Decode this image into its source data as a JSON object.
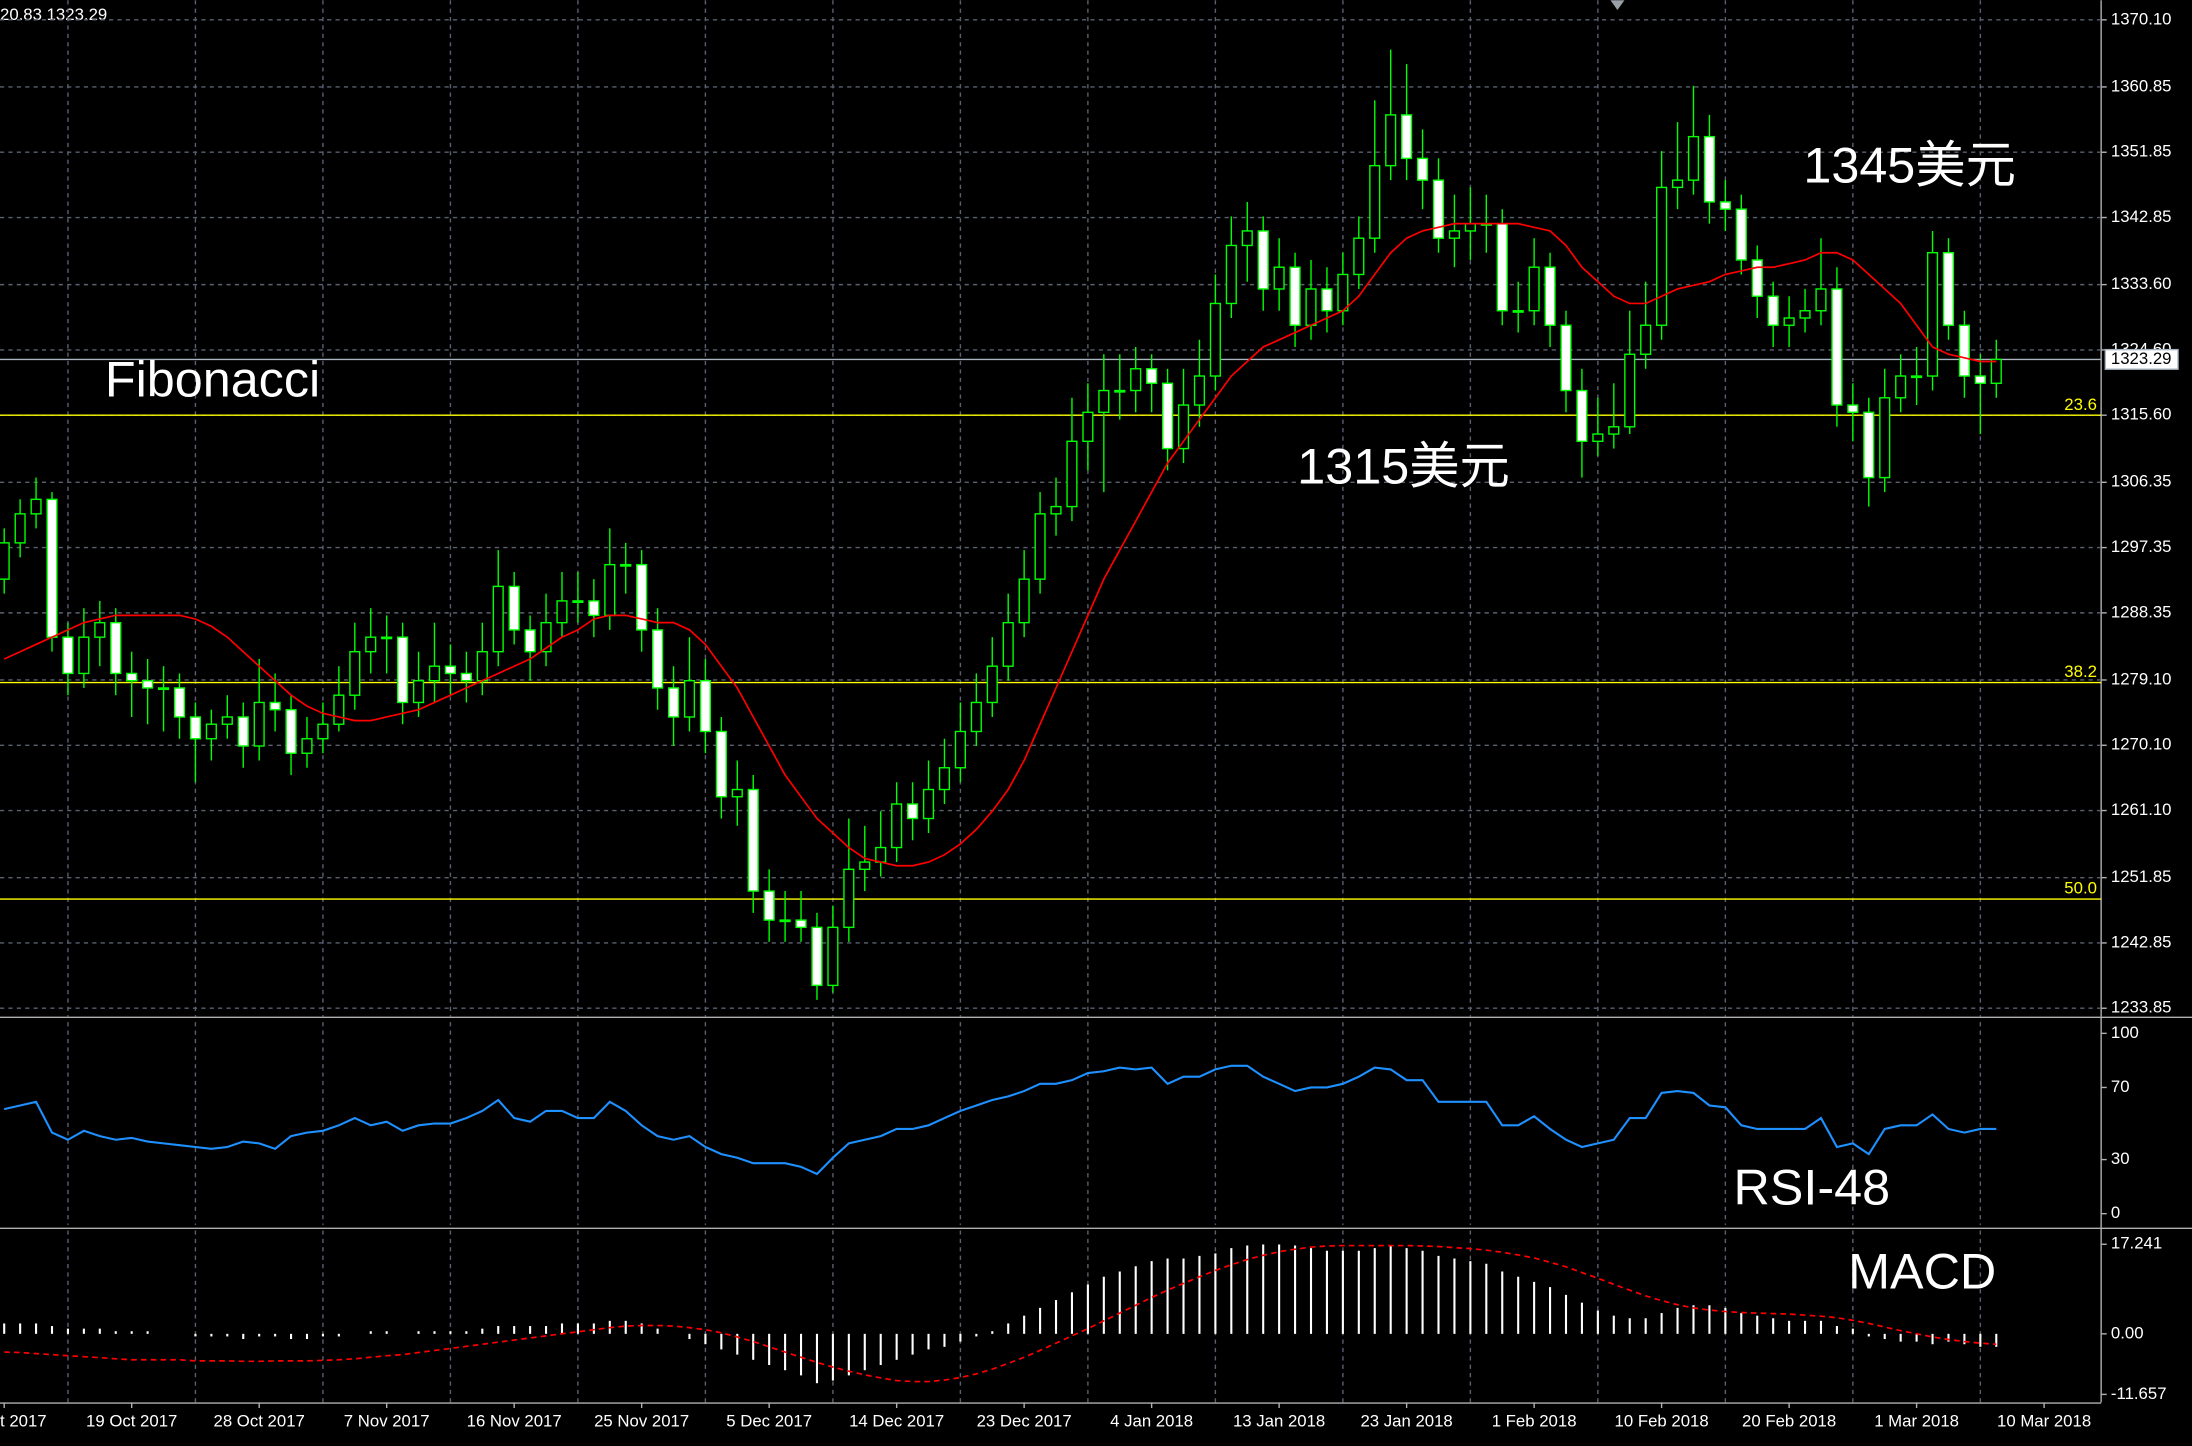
{
  "chart_data": {
    "type": "candlestick",
    "header": "20.83 1323.29",
    "categories": [
      "t 2017",
      null,
      null,
      null,
      null,
      null,
      null,
      null,
      "19 Oct 2017",
      null,
      null,
      null,
      null,
      null,
      null,
      null,
      "28 Oct 2017",
      null,
      null,
      null,
      null,
      null,
      null,
      null,
      "7 Nov 2017",
      null,
      null,
      null,
      null,
      null,
      null,
      null,
      "16 Nov 2017",
      null,
      null,
      null,
      null,
      null,
      null,
      null,
      "25 Nov 2017",
      null,
      null,
      null,
      null,
      null,
      null,
      null,
      "5 Dec 2017",
      null,
      null,
      null,
      null,
      null,
      null,
      null,
      "14 Dec 2017",
      null,
      null,
      null,
      null,
      null,
      null,
      null,
      "23 Dec 2017",
      null,
      null,
      null,
      null,
      null,
      null,
      null,
      "4 Jan 2018",
      null,
      null,
      null,
      null,
      null,
      null,
      null,
      "13 Jan 2018",
      null,
      null,
      null,
      null,
      null,
      null,
      null,
      "23 Jan 2018",
      null,
      null,
      null,
      null,
      null,
      null,
      null,
      "1 Feb 2018",
      null,
      null,
      null,
      null,
      null,
      null,
      null,
      "10 Feb 2018",
      null,
      null,
      null,
      null,
      null,
      null,
      null,
      "20 Feb 2018",
      null,
      null,
      null,
      null,
      null,
      null,
      null,
      "1 Mar 2018",
      null,
      null,
      null,
      null,
      null,
      null,
      null,
      "10 Mar 2018"
    ],
    "ohlc": [
      [
        1293,
        1300,
        1291,
        1298
      ],
      [
        1298,
        1304,
        1296,
        1302
      ],
      [
        1302,
        1307,
        1300,
        1304
      ],
      [
        1304,
        1305,
        1283,
        1285
      ],
      [
        1285,
        1287,
        1277,
        1280
      ],
      [
        1280,
        1289,
        1278,
        1285
      ],
      [
        1285,
        1290,
        1281,
        1287
      ],
      [
        1287,
        1289,
        1277,
        1280
      ],
      [
        1280,
        1283,
        1274,
        1279
      ],
      [
        1279,
        1282,
        1273,
        1278
      ],
      [
        1278,
        1281,
        1272,
        1278
      ],
      [
        1278,
        1280,
        1271,
        1274
      ],
      [
        1274,
        1276,
        1265,
        1271
      ],
      [
        1271,
        1275,
        1268,
        1273
      ],
      [
        1273,
        1277,
        1271,
        1274
      ],
      [
        1274,
        1276,
        1267,
        1270
      ],
      [
        1270,
        1282,
        1268,
        1276
      ],
      [
        1276,
        1280,
        1272,
        1275
      ],
      [
        1275,
        1277,
        1266,
        1269
      ],
      [
        1269,
        1274,
        1267,
        1271
      ],
      [
        1271,
        1276,
        1269,
        1273
      ],
      [
        1273,
        1281,
        1272,
        1277
      ],
      [
        1277,
        1287,
        1275,
        1283
      ],
      [
        1283,
        1289,
        1280,
        1285
      ],
      [
        1285,
        1288,
        1280,
        1285
      ],
      [
        1285,
        1287,
        1273,
        1276
      ],
      [
        1276,
        1283,
        1274,
        1279
      ],
      [
        1279,
        1287,
        1276,
        1281
      ],
      [
        1281,
        1284,
        1277,
        1280
      ],
      [
        1280,
        1283,
        1276,
        1279
      ],
      [
        1279,
        1287,
        1277,
        1283
      ],
      [
        1283,
        1297,
        1281,
        1292
      ],
      [
        1292,
        1294,
        1284,
        1286
      ],
      [
        1286,
        1288,
        1279,
        1283
      ],
      [
        1283,
        1291,
        1281,
        1287
      ],
      [
        1287,
        1294,
        1285,
        1290
      ],
      [
        1290,
        1294,
        1287,
        1290
      ],
      [
        1290,
        1293,
        1285,
        1288
      ],
      [
        1288,
        1300,
        1286,
        1295
      ],
      [
        1295,
        1298,
        1291,
        1295
      ],
      [
        1295,
        1297,
        1283,
        1286
      ],
      [
        1286,
        1289,
        1275,
        1278
      ],
      [
        1278,
        1281,
        1270,
        1274
      ],
      [
        1274,
        1285,
        1272,
        1279
      ],
      [
        1279,
        1282,
        1269,
        1272
      ],
      [
        1272,
        1274,
        1260,
        1263
      ],
      [
        1263,
        1268,
        1259,
        1264
      ],
      [
        1264,
        1266,
        1247,
        1250
      ],
      [
        1250,
        1253,
        1243,
        1246
      ],
      [
        1246,
        1250,
        1243,
        1246
      ],
      [
        1246,
        1250,
        1243,
        1245
      ],
      [
        1245,
        1247,
        1235,
        1237
      ],
      [
        1237,
        1248,
        1236,
        1245
      ],
      [
        1245,
        1260,
        1243,
        1253
      ],
      [
        1253,
        1259,
        1250,
        1254
      ],
      [
        1254,
        1261,
        1252,
        1256
      ],
      [
        1256,
        1265,
        1254,
        1262
      ],
      [
        1262,
        1265,
        1257,
        1260
      ],
      [
        1260,
        1268,
        1258,
        1264
      ],
      [
        1264,
        1271,
        1262,
        1267
      ],
      [
        1267,
        1276,
        1265,
        1272
      ],
      [
        1272,
        1280,
        1270,
        1276
      ],
      [
        1276,
        1285,
        1274,
        1281
      ],
      [
        1281,
        1291,
        1279,
        1287
      ],
      [
        1287,
        1297,
        1285,
        1293
      ],
      [
        1293,
        1305,
        1291,
        1302
      ],
      [
        1302,
        1307,
        1299,
        1303
      ],
      [
        1303,
        1318,
        1301,
        1312
      ],
      [
        1312,
        1320,
        1308,
        1316
      ],
      [
        1316,
        1324,
        1305,
        1319
      ],
      [
        1319,
        1324,
        1315,
        1319
      ],
      [
        1319,
        1325,
        1316,
        1322
      ],
      [
        1322,
        1324,
        1316,
        1320
      ],
      [
        1320,
        1322,
        1308,
        1311
      ],
      [
        1311,
        1322,
        1309,
        1317
      ],
      [
        1317,
        1326,
        1314,
        1321
      ],
      [
        1321,
        1335,
        1319,
        1331
      ],
      [
        1331,
        1343,
        1329,
        1339
      ],
      [
        1339,
        1345,
        1334,
        1341
      ],
      [
        1341,
        1343,
        1330,
        1333
      ],
      [
        1333,
        1340,
        1330,
        1336
      ],
      [
        1336,
        1338,
        1325,
        1328
      ],
      [
        1328,
        1337,
        1326,
        1333
      ],
      [
        1333,
        1336,
        1327,
        1330
      ],
      [
        1330,
        1338,
        1328,
        1335
      ],
      [
        1335,
        1343,
        1333,
        1340
      ],
      [
        1340,
        1359,
        1338,
        1350
      ],
      [
        1350,
        1366,
        1348,
        1357
      ],
      [
        1357,
        1364,
        1348,
        1351
      ],
      [
        1351,
        1355,
        1344,
        1348
      ],
      [
        1348,
        1351,
        1338,
        1340
      ],
      [
        1340,
        1346,
        1336,
        1341
      ],
      [
        1341,
        1347,
        1337,
        1342
      ],
      [
        1342,
        1346,
        1338,
        1342
      ],
      [
        1342,
        1344,
        1328,
        1330
      ],
      [
        1330,
        1334,
        1327,
        1330
      ],
      [
        1330,
        1340,
        1328,
        1336
      ],
      [
        1336,
        1338,
        1325,
        1328
      ],
      [
        1328,
        1330,
        1316,
        1319
      ],
      [
        1319,
        1322,
        1307,
        1312
      ],
      [
        1312,
        1318,
        1310,
        1313
      ],
      [
        1313,
        1320,
        1311,
        1314
      ],
      [
        1314,
        1330,
        1313,
        1324
      ],
      [
        1324,
        1334,
        1322,
        1328
      ],
      [
        1328,
        1352,
        1326,
        1347
      ],
      [
        1347,
        1356,
        1344,
        1348
      ],
      [
        1348,
        1361,
        1346,
        1354
      ],
      [
        1354,
        1357,
        1342,
        1345
      ],
      [
        1345,
        1348,
        1341,
        1344
      ],
      [
        1344,
        1346,
        1335,
        1337
      ],
      [
        1337,
        1339,
        1329,
        1332
      ],
      [
        1332,
        1334,
        1325,
        1328
      ],
      [
        1328,
        1332,
        1325,
        1329
      ],
      [
        1329,
        1333,
        1327,
        1330
      ],
      [
        1330,
        1340,
        1328,
        1333
      ],
      [
        1333,
        1336,
        1314,
        1317
      ],
      [
        1317,
        1320,
        1312,
        1316
      ],
      [
        1316,
        1318,
        1303,
        1307
      ],
      [
        1307,
        1322,
        1305,
        1318
      ],
      [
        1318,
        1324,
        1316,
        1321
      ],
      [
        1321,
        1325,
        1317,
        1321
      ],
      [
        1321,
        1341,
        1319,
        1338
      ],
      [
        1338,
        1340,
        1326,
        1328
      ],
      [
        1328,
        1330,
        1318,
        1321
      ],
      [
        1321,
        1324,
        1313,
        1320
      ],
      [
        1320,
        1326,
        1318,
        1323.29
      ],
      null,
      null,
      null
    ],
    "colors": {
      "bull": "#000000",
      "bear": "#ffffff",
      "wick": "#00ff00"
    },
    "grid": true,
    "ylim": [
      1232.7,
      1372.8
    ],
    "yticks": [
      {
        "value": 1370.1,
        "label": "1370.10"
      },
      1360.85,
      1351.85,
      1342.85,
      {
        "value": 1333.6,
        "label": "1333.60"
      },
      {
        "value": 1324.6,
        "label": "1324.60"
      },
      {
        "value": 1315.6,
        "label": "1315.60"
      },
      1306.35,
      1297.35,
      1288.35,
      {
        "value": 1279.1,
        "label": "1279.10"
      },
      {
        "value": 1270.1,
        "label": "1270.10"
      },
      {
        "value": 1261.1,
        "label": "1261.10"
      },
      1251.85,
      1242.85,
      1233.85
    ],
    "current_price": 1323.29,
    "ma": {
      "color": "#ff0000",
      "values": [
        1282,
        1283,
        1284,
        1285,
        1286,
        1287,
        1287.5,
        1288,
        1288,
        1288,
        1288,
        1288,
        1287.5,
        1286.5,
        1285,
        1283,
        1281,
        1279,
        1277,
        1275.5,
        1274.5,
        1274,
        1273.5,
        1273.5,
        1274,
        1274.5,
        1275,
        1276,
        1277,
        1278,
        1279,
        1280,
        1281,
        1282,
        1283.5,
        1285,
        1286,
        1287.5,
        1288,
        1288,
        1287.5,
        1287,
        1287,
        1286,
        1284,
        1281,
        1278,
        1274,
        1270,
        1266,
        1263,
        1260,
        1258,
        1256,
        1254.5,
        1254,
        1253.5,
        1253.5,
        1254,
        1255,
        1256.5,
        1258.5,
        1261,
        1264,
        1268,
        1273,
        1278,
        1283,
        1288,
        1293,
        1297,
        1301,
        1305,
        1309,
        1312,
        1315,
        1318,
        1321,
        1323,
        1325,
        1326,
        1327,
        1328,
        1329,
        1330,
        1332,
        1335,
        1338,
        1340,
        1341,
        1341.5,
        1342,
        1342,
        1342,
        1342,
        1342,
        1341.5,
        1341,
        1339,
        1336,
        1334,
        1332,
        1331,
        1331,
        1332,
        1333,
        1333.5,
        1334,
        1335,
        1335.5,
        1336,
        1336,
        1336.5,
        1337,
        1338,
        1338,
        1337,
        1335,
        1333,
        1331,
        1328,
        1325,
        1324,
        1323.5,
        1323,
        1323,
        null,
        null,
        null
      ]
    },
    "levels": [
      {
        "name": "23.6",
        "value": 1315.6,
        "color": "#ffff00"
      },
      {
        "name": "38.2",
        "value": 1278.75,
        "color": "#ffff00"
      },
      {
        "name": "50.0",
        "value": 1248.9,
        "color": "#ffff00"
      }
    ],
    "annotations": [
      "Fibonacci",
      "1345美元",
      "1315美元"
    ],
    "rsi": {
      "type": "line",
      "name": "RSI-48",
      "color": "#1e90ff",
      "ylim": [
        -6.2,
        106.2
      ],
      "yticks": [
        100,
        70,
        30,
        0
      ],
      "values": [
        58,
        60,
        62,
        45,
        41,
        46,
        43,
        41,
        42,
        40,
        39,
        38,
        37,
        36,
        37,
        40,
        39,
        36,
        43,
        45,
        46,
        49,
        53,
        49,
        51,
        46,
        49,
        50,
        50,
        53,
        57,
        63,
        53,
        51,
        57,
        57,
        53,
        53,
        62,
        57,
        49,
        43,
        41,
        43,
        37,
        33,
        31,
        28,
        28,
        28,
        26,
        22,
        31,
        39,
        41,
        43,
        47,
        47,
        49,
        53,
        57,
        60,
        63,
        65,
        68,
        72,
        72,
        74,
        78,
        79,
        81,
        80,
        81,
        72,
        76,
        76,
        80,
        82,
        82,
        76,
        72,
        68,
        70,
        70,
        72,
        76,
        81,
        80,
        74,
        74,
        62,
        62,
        62,
        62,
        49,
        49,
        54,
        47,
        41,
        37,
        39,
        41,
        53,
        53,
        67,
        68,
        67,
        60,
        59,
        49,
        47,
        47,
        47,
        47,
        53,
        37,
        39,
        33,
        47,
        49,
        49,
        55,
        47,
        45,
        47,
        47,
        null,
        null,
        null
      ]
    },
    "macd": {
      "type": "bar",
      "name": "MACD",
      "color": "#ffffff",
      "ylim": [
        -13.2,
        19.9
      ],
      "yticks": [
        17.241,
        {
          "value": 0,
          "label": "0.00"
        },
        -11.657
      ],
      "values": [
        2,
        2,
        2,
        1.5,
        1,
        1,
        1,
        0.5,
        0.5,
        0.5,
        0,
        0,
        -0.5,
        -0.5,
        -0.5,
        -1,
        -0.5,
        -0.5,
        -1,
        -1,
        -0.5,
        -0.5,
        0,
        0.5,
        0.5,
        0,
        0.5,
        0.5,
        0.5,
        0.5,
        1,
        1.5,
        1.5,
        1.5,
        1.5,
        2,
        2,
        2,
        2.5,
        2.5,
        2,
        1,
        0,
        -1,
        -2,
        -3,
        -4,
        -5,
        -6,
        -7,
        -8,
        -9.5,
        -9,
        -8,
        -7,
        -6,
        -5,
        -4,
        -3,
        -2.5,
        -1.5,
        -0.5,
        0.5,
        2,
        3.5,
        5,
        6.5,
        8,
        9.5,
        11,
        12,
        13,
        14,
        14.5,
        14.5,
        15,
        15.5,
        16.5,
        17,
        17.2,
        17.2,
        17,
        16.5,
        16,
        16,
        16,
        16.5,
        17,
        16.5,
        16,
        15,
        14.5,
        14,
        13.5,
        12,
        11,
        10,
        9,
        7.5,
        6,
        4.5,
        3.5,
        3,
        3,
        4,
        5,
        5.5,
        5.5,
        5,
        4,
        3.5,
        3,
        2.5,
        2.5,
        2.5,
        1.5,
        1,
        -0.5,
        -1,
        -1.5,
        -1.5,
        -2,
        -1.5,
        -2,
        -2.5,
        -2.5,
        null,
        null,
        null
      ],
      "signal": {
        "color": "#ff0000",
        "values": [
          -3.5,
          -3.6,
          -3.8,
          -4,
          -4.2,
          -4.4,
          -4.6,
          -4.8,
          -5,
          -5,
          -5,
          -5,
          -5.2,
          -5.2,
          -5.2,
          -5.3,
          -5.3,
          -5.2,
          -5.2,
          -5.2,
          -5.1,
          -5,
          -4.8,
          -4.5,
          -4.2,
          -4,
          -3.6,
          -3.2,
          -2.8,
          -2.4,
          -2,
          -1.6,
          -1.2,
          -0.8,
          -0.4,
          0,
          0.4,
          0.8,
          1.2,
          1.5,
          1.6,
          1.6,
          1.5,
          1.2,
          0.8,
          0.2,
          -0.6,
          -1.5,
          -2.5,
          -3.5,
          -4.5,
          -5.5,
          -6.4,
          -7.2,
          -7.9,
          -8.5,
          -9,
          -9.2,
          -9.2,
          -8.9,
          -8.4,
          -7.7,
          -6.8,
          -5.7,
          -4.5,
          -3.2,
          -1.8,
          -0.4,
          1,
          2.5,
          4,
          5.5,
          7,
          8.4,
          9.7,
          11,
          12.2,
          13.3,
          14.3,
          15.1,
          15.8,
          16.3,
          16.7,
          16.9,
          17,
          17,
          17,
          17,
          17,
          16.9,
          16.8,
          16.6,
          16.4,
          16.1,
          15.7,
          15.2,
          14.6,
          13.8,
          12.9,
          11.8,
          10.7,
          9.5,
          8.4,
          7.3,
          6.4,
          5.6,
          5,
          4.6,
          4.3,
          4.1,
          4,
          3.9,
          3.8,
          3.6,
          3.4,
          3.1,
          2.6,
          2,
          1.3,
          0.6,
          0,
          -0.6,
          -1.1,
          -1.5,
          -1.8,
          -2,
          null,
          null,
          null
        ]
      }
    }
  }
}
